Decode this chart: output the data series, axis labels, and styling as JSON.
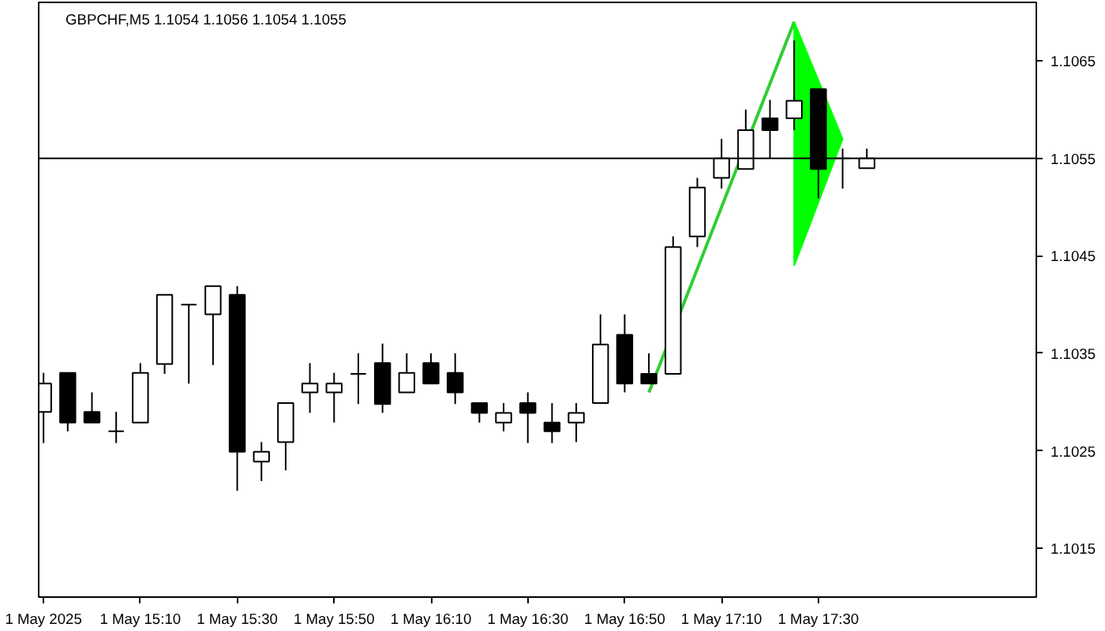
{
  "chart_data": {
    "type": "candlestick",
    "title": "GBPCHF,M5  1.1054 1.1056 1.1054 1.1055",
    "x": [
      "2025-05-01T14:50",
      "2025-05-01T14:55",
      "2025-05-01T15:00",
      "2025-05-01T15:05",
      "2025-05-01T15:10",
      "2025-05-01T15:15",
      "2025-05-01T15:20",
      "2025-05-01T15:25",
      "2025-05-01T15:30",
      "2025-05-01T15:35",
      "2025-05-01T15:40",
      "2025-05-01T15:45",
      "2025-05-01T15:50",
      "2025-05-01T15:55",
      "2025-05-01T16:00",
      "2025-05-01T16:05",
      "2025-05-01T16:10",
      "2025-05-01T16:15",
      "2025-05-01T16:20",
      "2025-05-01T16:25",
      "2025-05-01T16:30",
      "2025-05-01T16:35",
      "2025-05-01T16:40",
      "2025-05-01T16:45",
      "2025-05-01T16:50",
      "2025-05-01T16:55",
      "2025-05-01T17:00",
      "2025-05-01T17:05",
      "2025-05-01T17:10",
      "2025-05-01T17:15",
      "2025-05-01T17:20",
      "2025-05-01T17:25",
      "2025-05-01T17:30",
      "2025-05-01T17:35",
      "2025-05-01T17:40"
    ],
    "ohlc": [
      [
        1.1029,
        1.1033,
        1.10258,
        1.10319
      ],
      [
        1.1033,
        1.1033,
        1.1027,
        1.10279
      ],
      [
        1.1029,
        1.1031,
        1.10279,
        1.10279
      ],
      [
        1.1027,
        1.1029,
        1.10258,
        1.1027
      ],
      [
        1.10279,
        1.1034,
        1.10279,
        1.1033
      ],
      [
        1.10339,
        1.1041,
        1.10329,
        1.1041
      ],
      [
        1.104,
        1.104,
        1.10319,
        1.104
      ],
      [
        1.1039,
        1.10419,
        1.10338,
        1.10419
      ],
      [
        1.1041,
        1.10419,
        1.10209,
        1.10249
      ],
      [
        1.10239,
        1.10259,
        1.10219,
        1.10249
      ],
      [
        1.10259,
        1.10299,
        1.1023,
        1.10299
      ],
      [
        1.1031,
        1.1034,
        1.10289,
        1.10319
      ],
      [
        1.1031,
        1.1033,
        1.10279,
        1.10319
      ],
      [
        1.10329,
        1.1035,
        1.10298,
        1.10329
      ],
      [
        1.1034,
        1.1036,
        1.10289,
        1.10298
      ],
      [
        1.1031,
        1.1035,
        1.1031,
        1.1033
      ],
      [
        1.1034,
        1.1035,
        1.10319,
        1.10319
      ],
      [
        1.1033,
        1.1035,
        1.10298,
        1.1031
      ],
      [
        1.10299,
        1.10299,
        1.10279,
        1.10289
      ],
      [
        1.10279,
        1.10299,
        1.1027,
        1.10289
      ],
      [
        1.10299,
        1.1031,
        1.10258,
        1.10289
      ],
      [
        1.10279,
        1.10299,
        1.10258,
        1.1027
      ],
      [
        1.10279,
        1.10299,
        1.10259,
        1.10289
      ],
      [
        1.10299,
        1.1039,
        1.10299,
        1.10359
      ],
      [
        1.10369,
        1.1039,
        1.1031,
        1.10319
      ],
      [
        1.10329,
        1.1035,
        1.10319,
        1.10319
      ],
      [
        1.10329,
        1.1047,
        1.10329,
        1.10459
      ],
      [
        1.1047,
        1.1053,
        1.10459,
        1.1052
      ],
      [
        1.1053,
        1.1057,
        1.10519,
        1.1055
      ],
      [
        1.10539,
        1.106,
        1.10539,
        1.10579
      ],
      [
        1.10591,
        1.1061,
        1.1055,
        1.10579
      ],
      [
        1.10591,
        1.10671,
        1.10579,
        1.10609
      ],
      [
        1.10621,
        1.10621,
        1.10509,
        1.10539
      ],
      [
        1.1055,
        1.1056,
        1.10519,
        1.1055
      ],
      [
        1.1054,
        1.1056,
        1.1054,
        1.1055
      ]
    ],
    "series": [
      {
        "type": "line",
        "color": "#32cd32",
        "x": [
          "2025-05-01T16:55",
          "2025-05-01T17:25"
        ],
        "values": [
          1.1031,
          1.1069
        ]
      },
      {
        "type": "area",
        "color": "#00ff00",
        "x": [
          "2025-05-01T17:25",
          "2025-05-01T17:25",
          "2025-05-01T17:35"
        ],
        "values": [
          1.1069,
          1.1044,
          1.1057
        ]
      }
    ],
    "xlim": [
      "2025-05-01T14:49",
      "2025-05-01T18:15"
    ],
    "xticks": [
      {
        "value": "2025-05-01T14:50",
        "label": "1 May 2025"
      },
      {
        "value": "2025-05-01T15:10",
        "label": "1 May 15:10"
      },
      {
        "value": "2025-05-01T15:30",
        "label": "1 May 15:30"
      },
      {
        "value": "2025-05-01T15:50",
        "label": "1 May 15:50"
      },
      {
        "value": "2025-05-01T16:10",
        "label": "1 May 16:10"
      },
      {
        "value": "2025-05-01T16:30",
        "label": "1 May 16:30"
      },
      {
        "value": "2025-05-01T16:50",
        "label": "1 May 16:50"
      },
      {
        "value": "2025-05-01T17:10",
        "label": "1 May 17:10"
      },
      {
        "value": "2025-05-01T17:30",
        "label": "1 May 17:30"
      }
    ],
    "ylim": [
      1.101,
      1.1071
    ],
    "yticks": [
      1.1015,
      1.1025,
      1.1035,
      1.1045,
      1.1065
    ],
    "ref_lines": [
      {
        "axis": "y",
        "value": 1.1055,
        "label": "1.1055",
        "color": "#000000"
      }
    ],
    "grid": false
  }
}
